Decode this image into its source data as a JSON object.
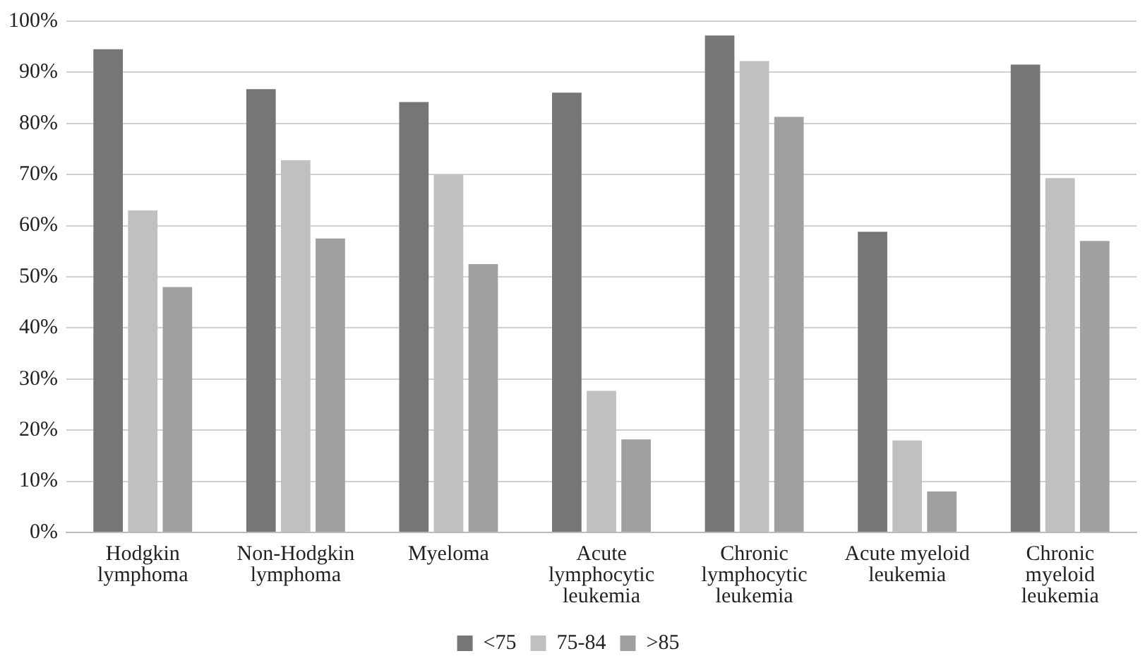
{
  "chart_data": {
    "type": "bar",
    "categories": [
      "Hodgkin lymphoma",
      "Non-Hodgkin lymphoma",
      "Myeloma",
      "Acute lymphocytic leukemia",
      "Chronic lymphocytic leukemia",
      "Acute myeloid leukemia",
      "Chronic myeloid leukemia"
    ],
    "series": [
      {
        "name": "<75",
        "color": "#767676",
        "values": [
          94.5,
          86.7,
          84.2,
          86,
          97.2,
          58.8,
          91.5
        ]
      },
      {
        "name": "75-84",
        "color": "#c0c0c0",
        "values": [
          63,
          72.8,
          70,
          27.7,
          92.2,
          18,
          69.3
        ]
      },
      {
        "name": ">85",
        "color": "#a0a0a0",
        "values": [
          48,
          57.5,
          52.5,
          18.2,
          81.3,
          8,
          57
        ]
      }
    ],
    "ylim": [
      0,
      100
    ],
    "yticks": [
      {
        "value": 0,
        "label": "0%"
      },
      {
        "value": 10,
        "label": "10%"
      },
      {
        "value": 20,
        "label": "20%"
      },
      {
        "value": 30,
        "label": "30%"
      },
      {
        "value": 40,
        "label": "40%"
      },
      {
        "value": 50,
        "label": "50%"
      },
      {
        "value": 60,
        "label": "60%"
      },
      {
        "value": 70,
        "label": "70%"
      },
      {
        "value": 80,
        "label": "80%"
      },
      {
        "value": 90,
        "label": "90%"
      },
      {
        "value": 100,
        "label": "100%"
      }
    ],
    "grid": "y",
    "legend": "bottom"
  }
}
